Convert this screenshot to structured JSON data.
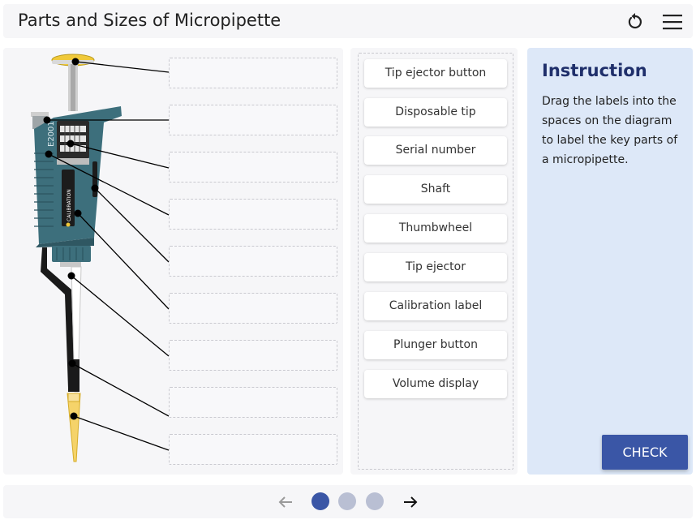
{
  "header": {
    "title": "Parts and Sizes of Micropipette",
    "reset_icon": "reset-icon",
    "menu_icon": "hamburger-menu-icon"
  },
  "diagram": {
    "pipette_side_text": "E2001",
    "calibration_text": "CALIBRATION",
    "drop_zone_count": 9
  },
  "labels": [
    "Tip ejector button",
    "Disposable tip",
    "Serial number",
    "Shaft",
    "Thumbwheel",
    "Tip ejector",
    "Calibration label",
    "Plunger button",
    "Volume display"
  ],
  "instruction": {
    "title": "Instruction",
    "text": "Drag the labels into the spaces on the diagram to label the key parts of a micropipette.",
    "check_label": "CHECK"
  },
  "pagination": {
    "pages": 3,
    "current": 1,
    "active_color": "#3a56a6",
    "inactive_color": "#b9bfd3"
  }
}
